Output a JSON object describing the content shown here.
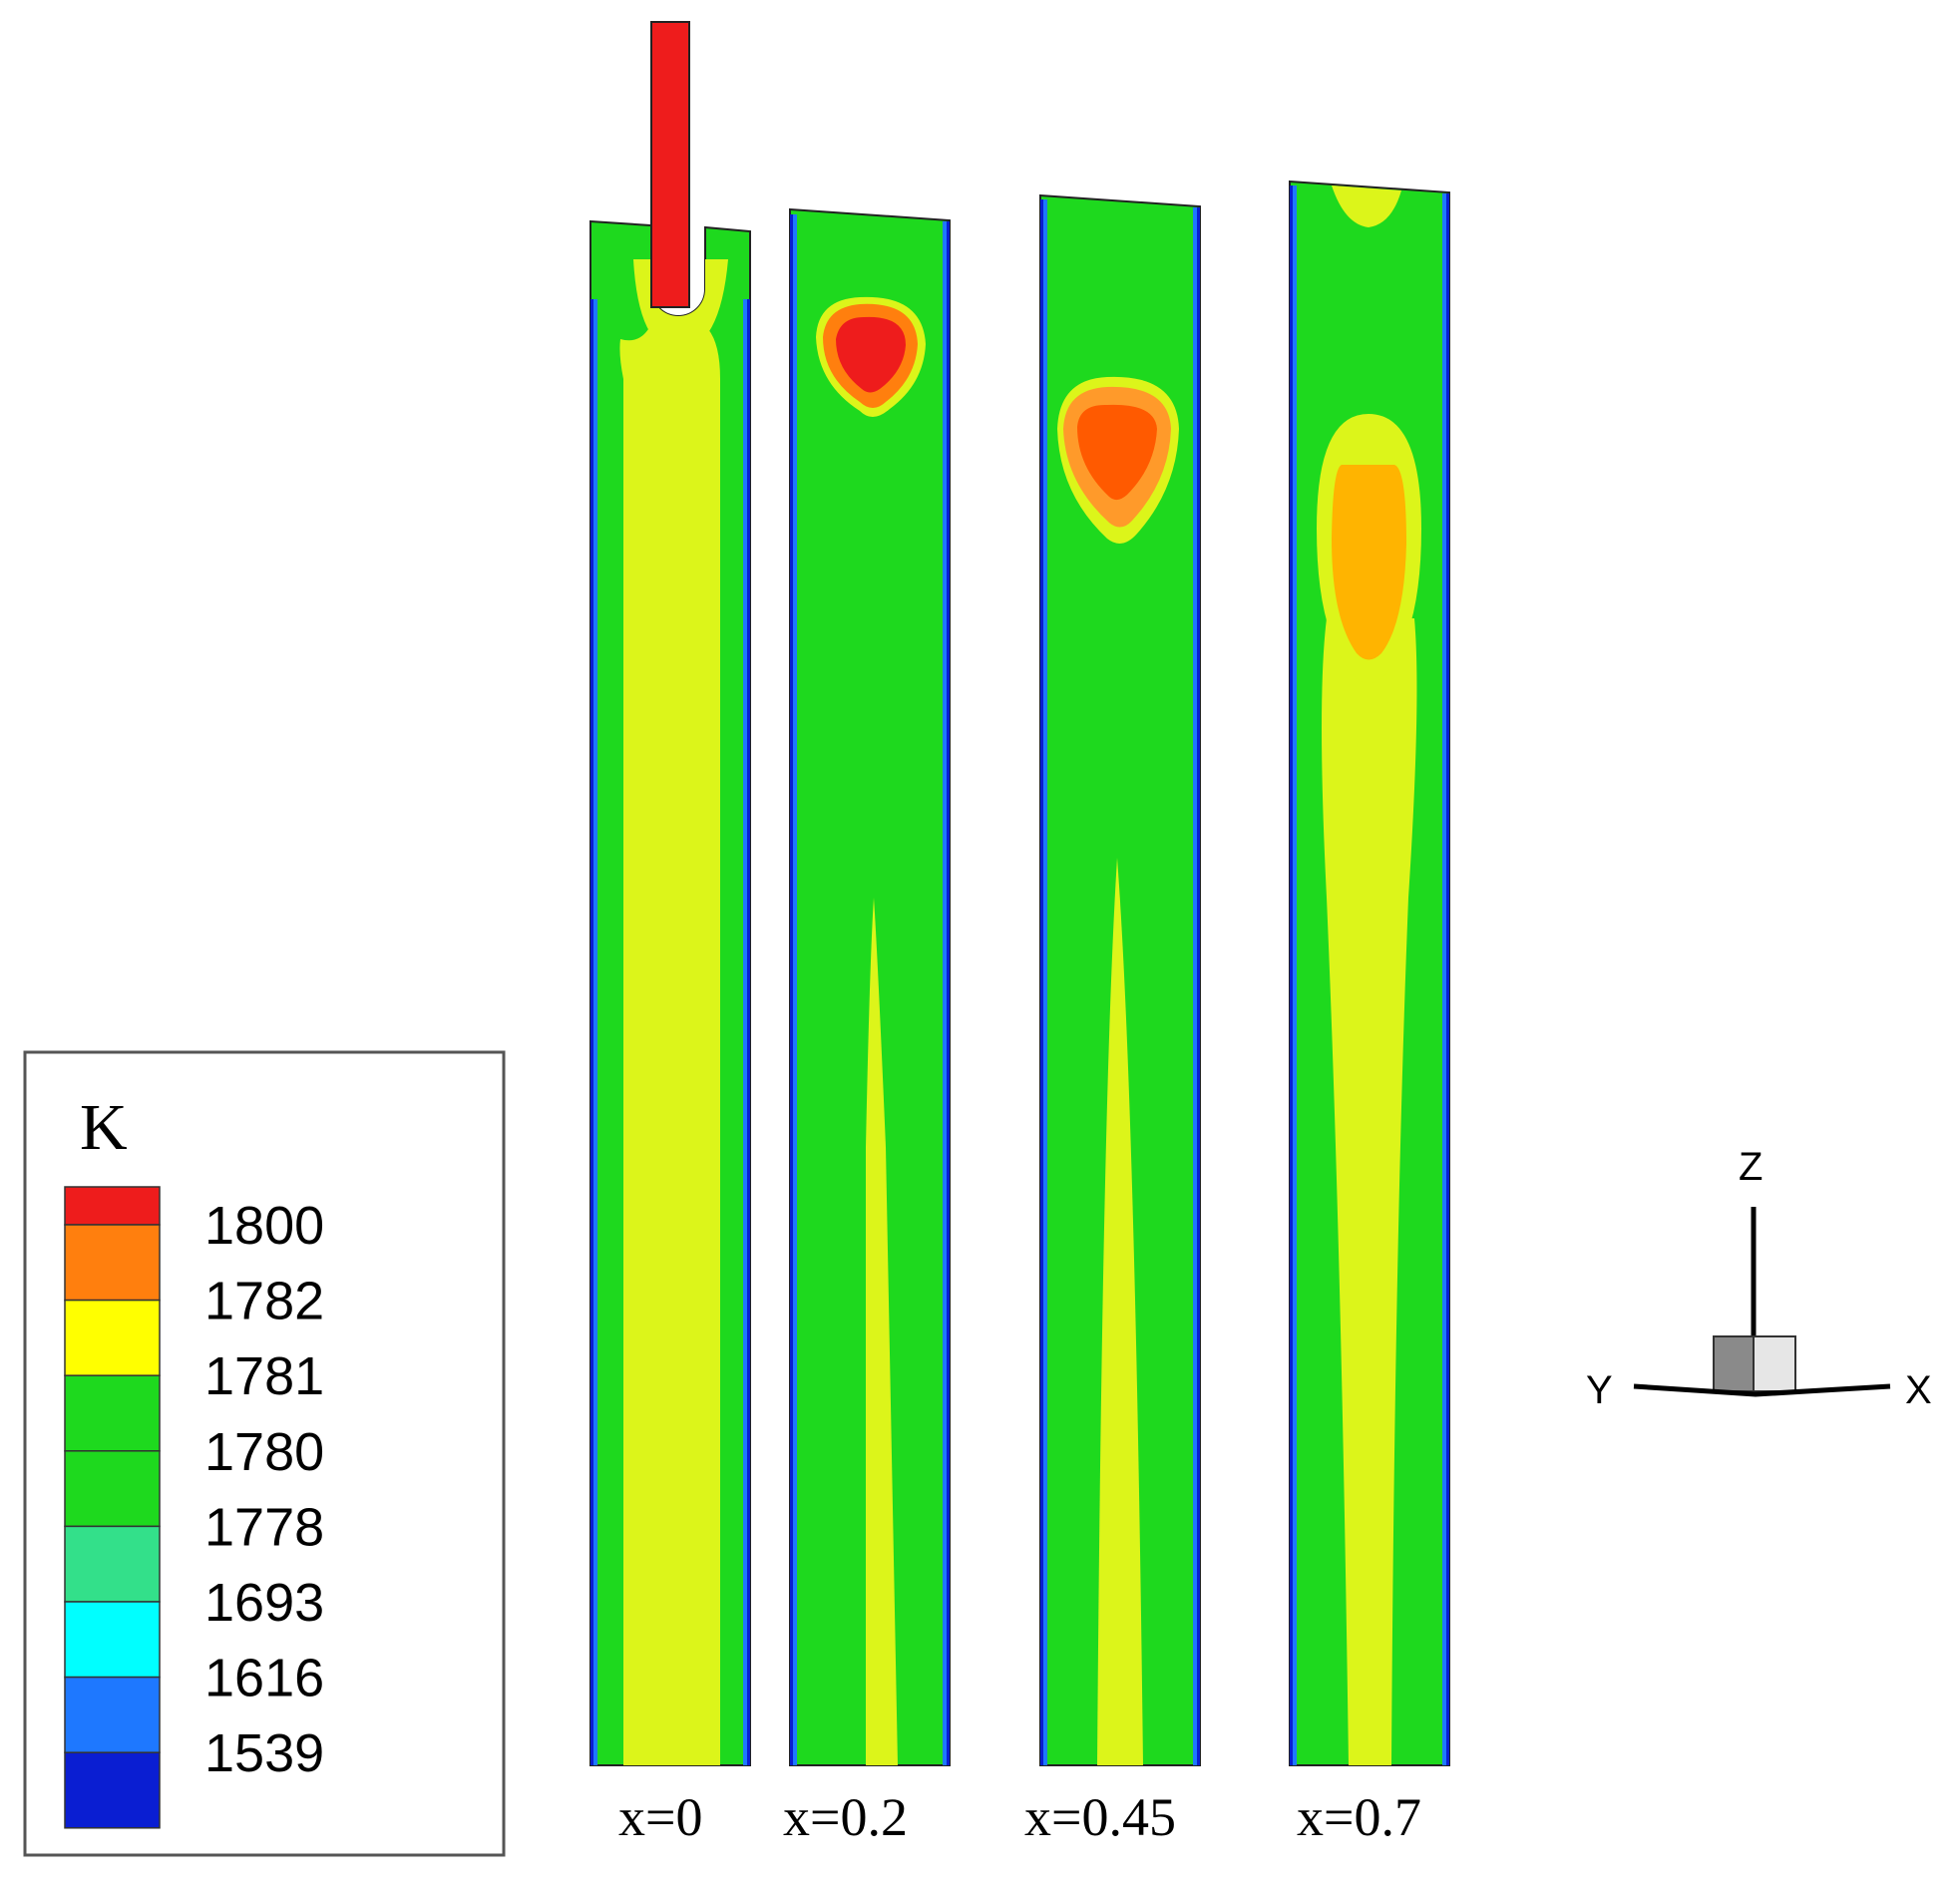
{
  "legend": {
    "unit": "K",
    "levels": [
      {
        "value": "1800",
        "color": "#ee1c1c"
      },
      {
        "value": "1782",
        "color": "#ff7f0e"
      },
      {
        "value": "1781",
        "color": "#ffff00"
      },
      {
        "value": "1780",
        "color": "#1ed91e"
      },
      {
        "value": "1778",
        "color": "#1ed91e"
      },
      {
        "value": "1693",
        "color": "#33e08a"
      },
      {
        "value": "1616",
        "color": "#00ffff"
      },
      {
        "value": "1539",
        "color": "#1e78ff"
      }
    ],
    "bottom_color": "#0a1ed2"
  },
  "slices": [
    {
      "label": "x=0"
    },
    {
      "label": "x=0.2"
    },
    {
      "label": "x=0.45"
    },
    {
      "label": "x=0.7"
    }
  ],
  "colors": {
    "green": "#1ed91e",
    "yellow_green": "#dcf51a",
    "yellow": "#f6f500",
    "orange": "#ff7f0e",
    "dark_orange": "#ff5a00",
    "amber": "#ffb400",
    "red": "#ee1c1c",
    "blue": "#1e78ff",
    "dark_blue": "#0a1ed2",
    "cyan": "#00ffff"
  },
  "axes": {
    "z": "Z",
    "y": "Y",
    "x": "X"
  }
}
